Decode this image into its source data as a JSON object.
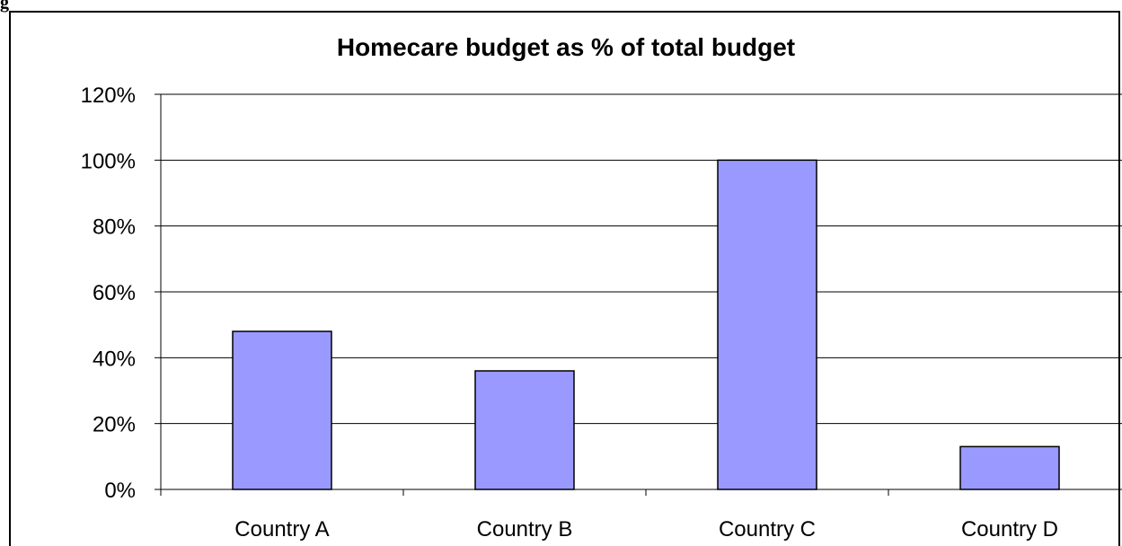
{
  "header": {
    "corner_text": "g"
  },
  "chart_data": {
    "type": "bar",
    "title": "Homecare budget as % of total budget",
    "xlabel": "",
    "ylabel": "",
    "categories": [
      "Country A",
      "Country B",
      "Country C",
      "Country D"
    ],
    "values": [
      0.48,
      0.36,
      1.0,
      0.13
    ],
    "ylim": [
      0,
      1.2
    ],
    "yticks": [
      0,
      0.2,
      0.4,
      0.6,
      0.8,
      1.0,
      1.2
    ],
    "ytick_labels": [
      "0%",
      "20%",
      "40%",
      "60%",
      "80%",
      "100%",
      "120%"
    ],
    "grid": true,
    "legend": "none",
    "colors": {
      "bar_fill": "#9999ff",
      "bar_stroke": "#000000",
      "grid": "#000000"
    }
  }
}
